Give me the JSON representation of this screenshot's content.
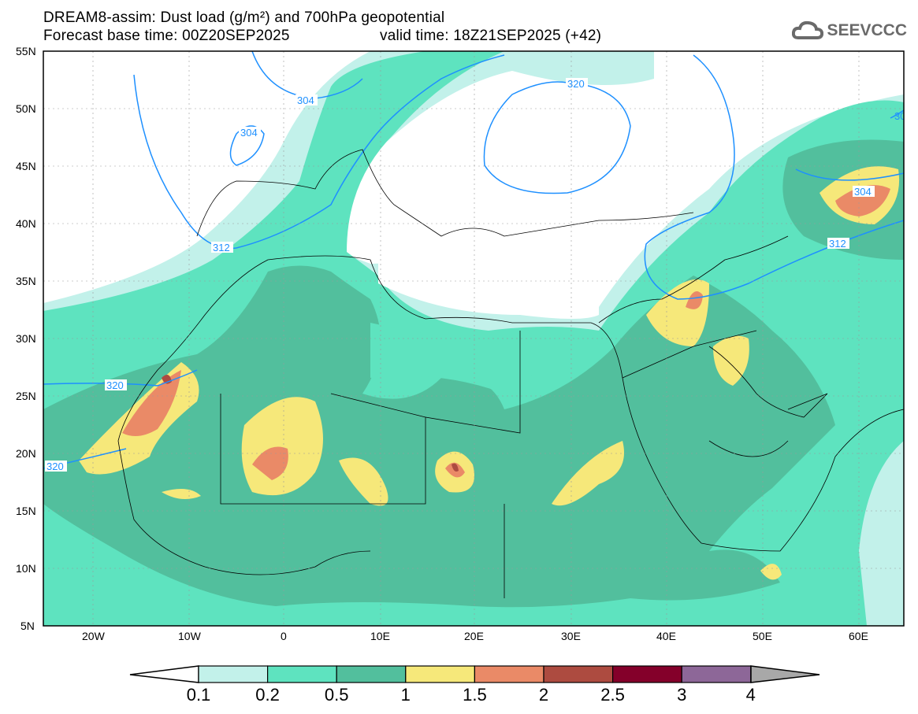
{
  "header": {
    "title_line1": "DREAM8-assim: Dust load (g/m²) and 700hPa geopotential",
    "base_time": "Forecast base time: 00Z20SEP2025",
    "valid_time": "valid time: 18Z21SEP2025 (+42)",
    "logo_text": "SEEVCCC"
  },
  "axes": {
    "lat_ticks": [
      "55N",
      "50N",
      "45N",
      "40N",
      "35N",
      "30N",
      "25N",
      "20N",
      "15N",
      "10N",
      "5N"
    ],
    "lon_ticks": [
      "20W",
      "10W",
      "0",
      "10E",
      "20E",
      "30E",
      "40E",
      "50E",
      "60E"
    ]
  },
  "contour_labels": [
    "304",
    "304",
    "312",
    "320",
    "320",
    "320",
    "304",
    "312",
    "30"
  ],
  "colorbar": {
    "labels": [
      "0.1",
      "0.2",
      "0.5",
      "1",
      "1.5",
      "2",
      "2.5",
      "3",
      "4"
    ],
    "colors": [
      "#c2f1ea",
      "#5ee3bf",
      "#52bf9d",
      "#f6e87a",
      "#ea8a67",
      "#ad4b40",
      "#84002a",
      "#8d6798"
    ],
    "under_color": "#ffffff",
    "over_color": "#a8a8a8"
  },
  "contour_color": "#1e90ff"
}
